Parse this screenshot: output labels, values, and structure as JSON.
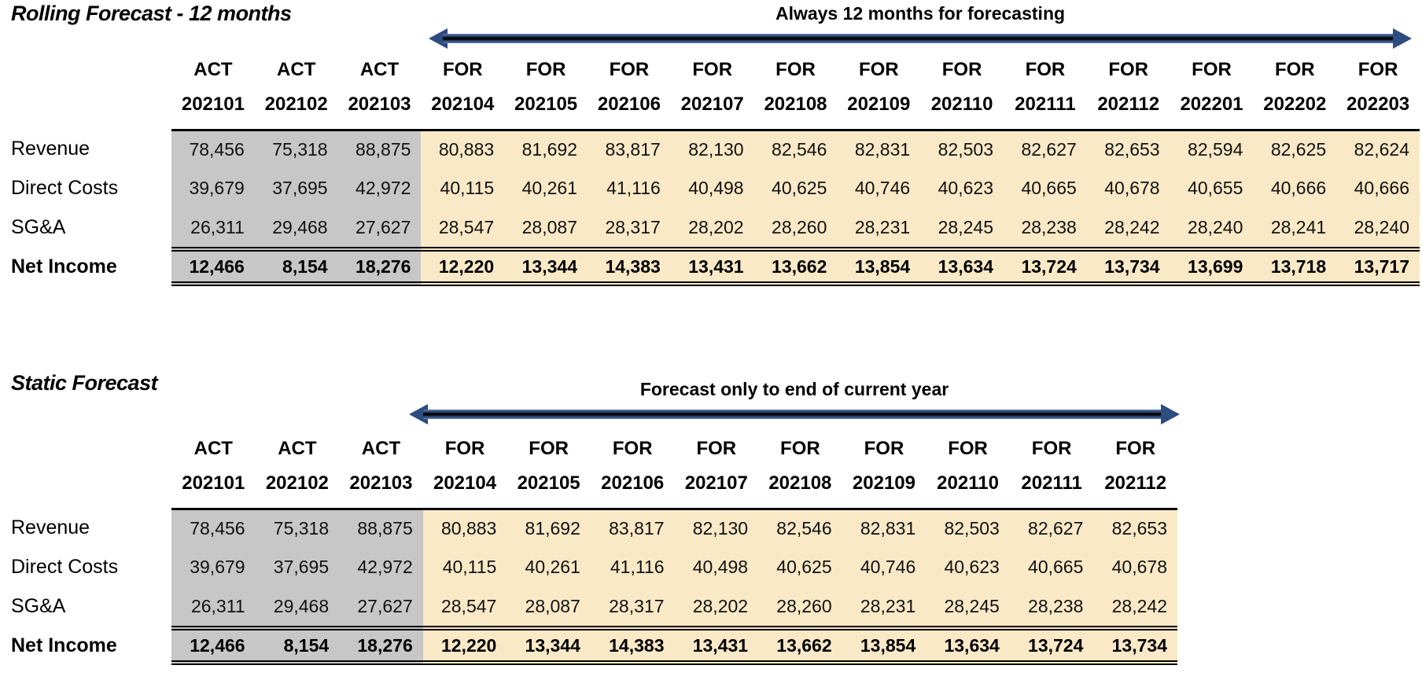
{
  "colors": {
    "actual_bg": "#C7C7C7",
    "forecast_bg": "#FAE9C6",
    "arrow_navy": "#2D4C80",
    "border": "#000000"
  },
  "tables": [
    {
      "title": "Rolling Forecast - 12 months",
      "arrow_label": "Always 12 months for forecasting",
      "actual_count": 3,
      "columns": [
        {
          "type": "ACT",
          "period": "202101"
        },
        {
          "type": "ACT",
          "period": "202102"
        },
        {
          "type": "ACT",
          "period": "202103"
        },
        {
          "type": "FOR",
          "period": "202104"
        },
        {
          "type": "FOR",
          "period": "202105"
        },
        {
          "type": "FOR",
          "period": "202106"
        },
        {
          "type": "FOR",
          "period": "202107"
        },
        {
          "type": "FOR",
          "period": "202108"
        },
        {
          "type": "FOR",
          "period": "202109"
        },
        {
          "type": "FOR",
          "period": "202110"
        },
        {
          "type": "FOR",
          "period": "202111"
        },
        {
          "type": "FOR",
          "period": "202112"
        },
        {
          "type": "FOR",
          "period": "202201"
        },
        {
          "type": "FOR",
          "period": "202202"
        },
        {
          "type": "FOR",
          "period": "202203"
        }
      ],
      "rows": [
        {
          "label": "Revenue",
          "total": false,
          "values": [
            "78,456",
            "75,318",
            "88,875",
            "80,883",
            "81,692",
            "83,817",
            "82,130",
            "82,546",
            "82,831",
            "82,503",
            "82,627",
            "82,653",
            "82,594",
            "82,625",
            "82,624"
          ]
        },
        {
          "label": "Direct Costs",
          "total": false,
          "values": [
            "39,679",
            "37,695",
            "42,972",
            "40,115",
            "40,261",
            "41,116",
            "40,498",
            "40,625",
            "40,746",
            "40,623",
            "40,665",
            "40,678",
            "40,655",
            "40,666",
            "40,666"
          ]
        },
        {
          "label": "SG&A",
          "total": false,
          "values": [
            "26,311",
            "29,468",
            "27,627",
            "28,547",
            "28,087",
            "28,317",
            "28,202",
            "28,260",
            "28,231",
            "28,245",
            "28,238",
            "28,242",
            "28,240",
            "28,241",
            "28,240"
          ]
        },
        {
          "label": "Net Income",
          "total": true,
          "values": [
            "12,466",
            "8,154",
            "18,276",
            "12,220",
            "13,344",
            "14,383",
            "13,431",
            "13,662",
            "13,854",
            "13,634",
            "13,724",
            "13,734",
            "13,699",
            "13,718",
            "13,717"
          ]
        }
      ]
    },
    {
      "title": "Static Forecast",
      "arrow_label": "Forecast only to end of current year",
      "actual_count": 3,
      "columns": [
        {
          "type": "ACT",
          "period": "202101"
        },
        {
          "type": "ACT",
          "period": "202102"
        },
        {
          "type": "ACT",
          "period": "202103"
        },
        {
          "type": "FOR",
          "period": "202104"
        },
        {
          "type": "FOR",
          "period": "202105"
        },
        {
          "type": "FOR",
          "period": "202106"
        },
        {
          "type": "FOR",
          "period": "202107"
        },
        {
          "type": "FOR",
          "period": "202108"
        },
        {
          "type": "FOR",
          "period": "202109"
        },
        {
          "type": "FOR",
          "period": "202110"
        },
        {
          "type": "FOR",
          "period": "202111"
        },
        {
          "type": "FOR",
          "period": "202112"
        }
      ],
      "rows": [
        {
          "label": "Revenue",
          "total": false,
          "values": [
            "78,456",
            "75,318",
            "88,875",
            "80,883",
            "81,692",
            "83,817",
            "82,130",
            "82,546",
            "82,831",
            "82,503",
            "82,627",
            "82,653"
          ]
        },
        {
          "label": "Direct Costs",
          "total": false,
          "values": [
            "39,679",
            "37,695",
            "42,972",
            "40,115",
            "40,261",
            "41,116",
            "40,498",
            "40,625",
            "40,746",
            "40,623",
            "40,665",
            "40,678"
          ]
        },
        {
          "label": "SG&A",
          "total": false,
          "values": [
            "26,311",
            "29,468",
            "27,627",
            "28,547",
            "28,087",
            "28,317",
            "28,202",
            "28,260",
            "28,231",
            "28,245",
            "28,238",
            "28,242"
          ]
        },
        {
          "label": "Net Income",
          "total": true,
          "values": [
            "12,466",
            "8,154",
            "18,276",
            "12,220",
            "13,344",
            "14,383",
            "13,431",
            "13,662",
            "13,854",
            "13,634",
            "13,724",
            "13,734"
          ]
        }
      ]
    }
  ]
}
